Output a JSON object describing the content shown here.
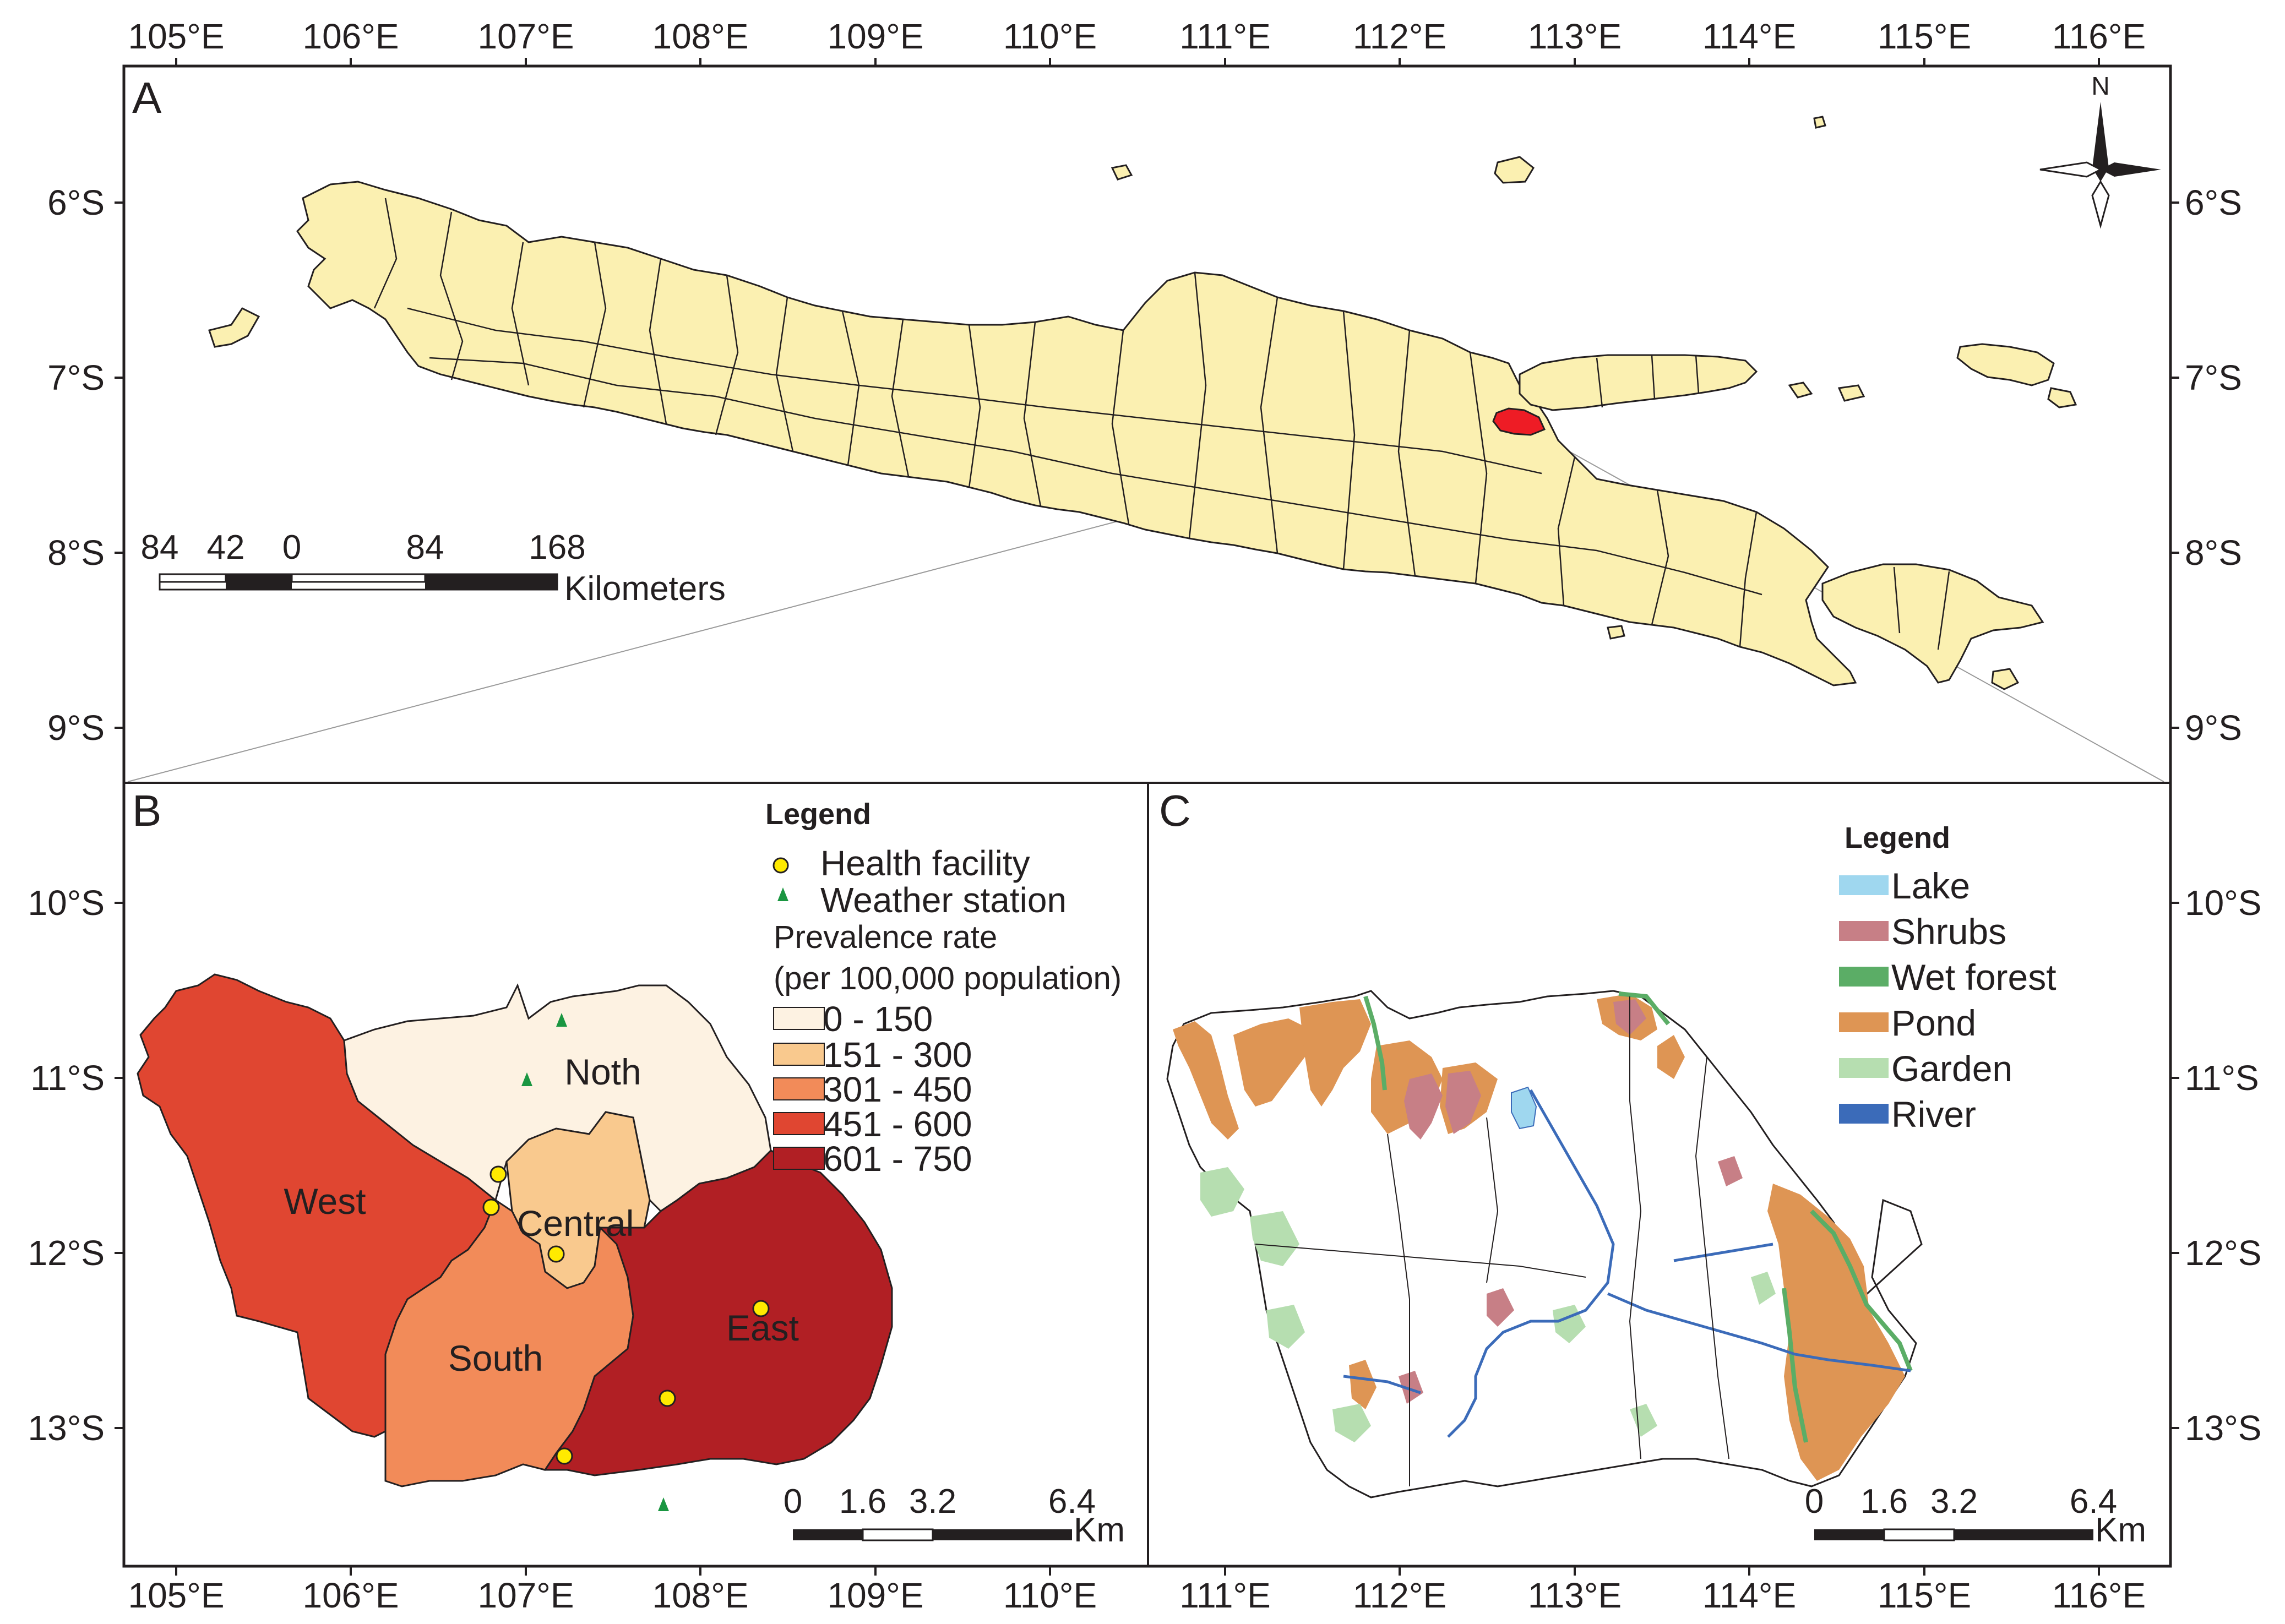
{
  "colors": {
    "land": "#fbf0b1",
    "highlight": "#ee1c25",
    "prev_0_150": "#fdf2e2",
    "prev_151_300": "#f9c98e",
    "prev_301_450": "#f28b59",
    "prev_451_600": "#e04631",
    "prev_601_750": "#b11f24",
    "lake": "#9fd7ef",
    "shrubs": "#c77f86",
    "wet_forest": "#5bad66",
    "pond": "#de9554",
    "garden": "#b6deb0",
    "river": "#3b6bb9",
    "health_facility": "#ffea00",
    "weather_station": "#1a9641"
  },
  "axes": {
    "lon_ticks": [
      "105°E",
      "106°E",
      "107°E",
      "108°E",
      "109°E",
      "110°E",
      "111°E",
      "112°E",
      "113°E",
      "114°E",
      "115°E",
      "116°E"
    ],
    "lat_ticks": [
      "6°S",
      "7°S",
      "8°S",
      "9°S",
      "10°S",
      "11°S",
      "12°S",
      "13°S"
    ]
  },
  "panels": {
    "a": {
      "label": "A",
      "north_label": "N",
      "scale_numbers": [
        "84",
        "42",
        "0",
        "84",
        "168"
      ],
      "scale_unit": "Kilometers"
    },
    "b": {
      "label": "B",
      "legend_title": "Legend",
      "legend_points": [
        "Health facility",
        "Weather station"
      ],
      "prevalence_title": "Prevalence rate",
      "prevalence_unit": "(per 100,000 population)",
      "classes": [
        "0 - 150",
        "151 - 300",
        "301 - 450",
        "451 - 600",
        "601 - 750"
      ],
      "districts": {
        "north": "Noth",
        "west": "West",
        "central": "Central",
        "south": "South",
        "east": "East"
      },
      "scale_numbers": [
        "0",
        "1.6",
        "3.2",
        "6.4"
      ],
      "scale_unit": "Km"
    },
    "c": {
      "label": "C",
      "legend_title": "Legend",
      "landcover": [
        "Lake",
        "Shrubs",
        "Wet forest",
        "Pond",
        "Garden",
        "River"
      ],
      "scale_numbers": [
        "0",
        "1.6",
        "3.2",
        "6.4"
      ],
      "scale_unit": "Km"
    }
  }
}
